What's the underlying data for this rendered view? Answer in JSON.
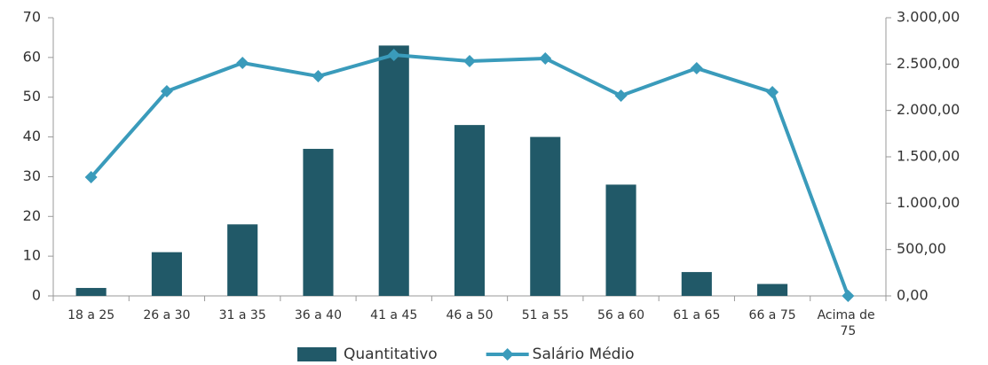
{
  "chart_data": {
    "type": "bar-line",
    "categories": [
      "18 a 25",
      "26 a 30",
      "31 a 35",
      "36 a 40",
      "41 a 45",
      "46 a 50",
      "51 a 55",
      "56 a 60",
      "61 a 65",
      "66 a 75",
      "Acima de 75"
    ],
    "series": [
      {
        "name": "Quantitativo",
        "type": "bar",
        "color": "#215968",
        "values": [
          2,
          11,
          18,
          37,
          63,
          43,
          40,
          28,
          6,
          3,
          0
        ]
      },
      {
        "name": "Salário Médio",
        "type": "line",
        "axis": "y2",
        "color": "#3a9bbb",
        "values": [
          1280,
          2207,
          2513,
          2369,
          2599,
          2532,
          2561,
          2159,
          2455,
          2197,
          0
        ]
      }
    ],
    "ylim": [
      0,
      70
    ],
    "yticks": [
      0,
      10,
      20,
      30,
      40,
      50,
      60,
      70
    ],
    "y2lim": [
      0,
      3000
    ],
    "y2ticks": [
      {
        "value": 0,
        "label": "0,00"
      },
      {
        "value": 500,
        "label": "500,00"
      },
      {
        "value": 1000,
        "label": "1.000,00"
      },
      {
        "value": 1500,
        "label": "1.500,00"
      },
      {
        "value": 2000,
        "label": "2.000,00"
      },
      {
        "value": 2500,
        "label": "2.500,00"
      },
      {
        "value": 3000,
        "label": "3.000,00"
      }
    ],
    "grid": false,
    "legend": "bottom"
  }
}
